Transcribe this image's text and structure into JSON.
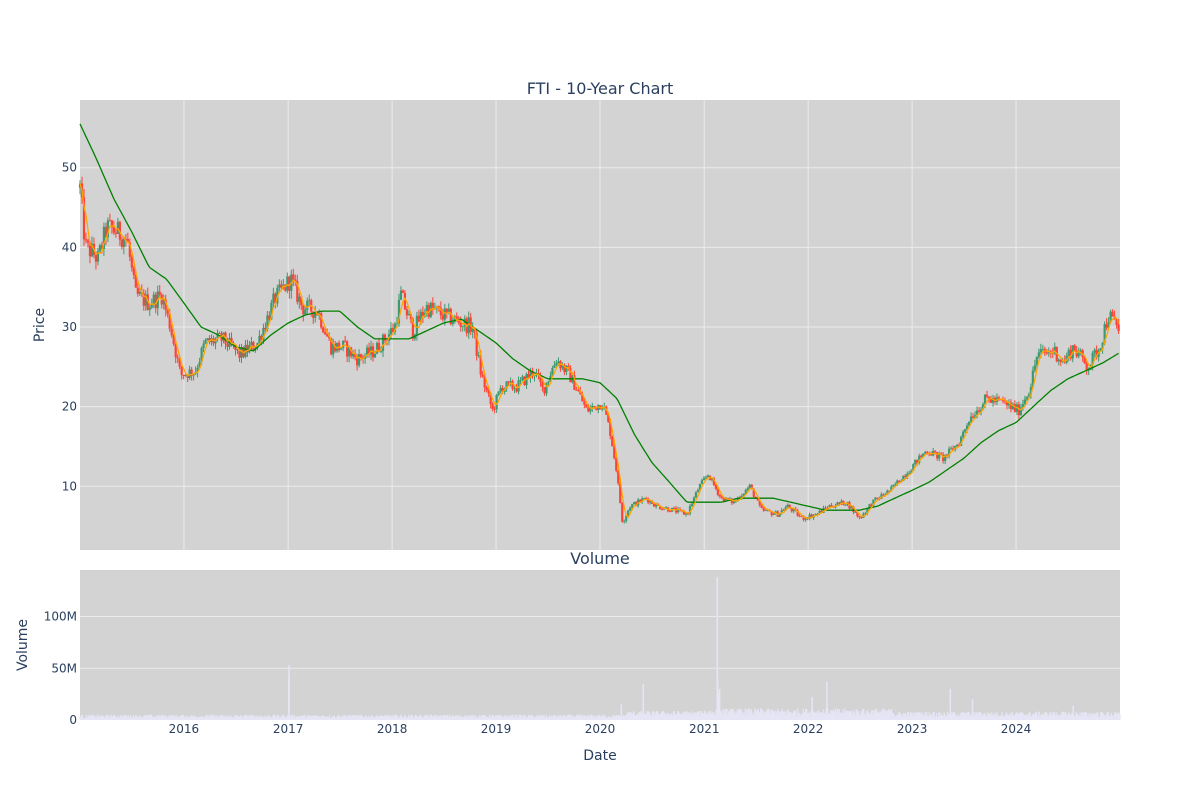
{
  "chart_data": {
    "type": "candlestick",
    "title": "FTI - 10-Year Chart",
    "subplot_title": "Volume",
    "xlabel": "Date",
    "price_ylabel": "Price",
    "volume_ylabel": "Volume",
    "x_range": [
      "2015-01-01",
      "2024-12-31"
    ],
    "x_ticks": [
      "2016",
      "2017",
      "2018",
      "2019",
      "2020",
      "2021",
      "2022",
      "2023",
      "2024"
    ],
    "price_ylim": [
      2,
      58.5
    ],
    "price_ticks": [
      "10",
      "20",
      "30",
      "40",
      "50"
    ],
    "volume_ylim": [
      0,
      145000000
    ],
    "volume_ticks": [
      "0",
      "50M",
      "100M"
    ],
    "grid": true,
    "colors": {
      "panel_bg": "#d3d3d3",
      "grid": "#ebebeb",
      "up": "#3d9970",
      "down": "#ff4136",
      "ma_short": "#ffa500",
      "ma_long": "#008000",
      "volume": "#e5e5f5",
      "text": "#2a3f5f"
    },
    "price_anchors": [
      [
        "2015-01-01",
        47.5
      ],
      [
        "2015-01-20",
        40.0
      ],
      [
        "2015-02-10",
        39.5
      ],
      [
        "2015-03-05",
        38.5
      ],
      [
        "2015-04-05",
        42.5
      ],
      [
        "2015-05-10",
        42.0
      ],
      [
        "2015-06-15",
        41.0
      ],
      [
        "2015-07-15",
        34.0
      ],
      [
        "2015-09-01",
        33.0
      ],
      [
        "2015-10-15",
        34.0
      ],
      [
        "2015-11-15",
        30.0
      ],
      [
        "2015-12-20",
        24.0
      ],
      [
        "2016-02-10",
        24.5
      ],
      [
        "2016-03-15",
        28.0
      ],
      [
        "2016-05-15",
        28.5
      ],
      [
        "2016-07-15",
        26.5
      ],
      [
        "2016-09-15",
        28.0
      ],
      [
        "2016-11-15",
        33.5
      ],
      [
        "2017-01-10",
        36.0
      ],
      [
        "2017-02-20",
        32.5
      ],
      [
        "2017-04-15",
        32.0
      ],
      [
        "2017-06-01",
        27.5
      ],
      [
        "2017-07-15",
        27.5
      ],
      [
        "2017-09-01",
        26.0
      ],
      [
        "2017-11-01",
        27.0
      ],
      [
        "2018-01-10",
        30.0
      ],
      [
        "2018-02-01",
        34.0
      ],
      [
        "2018-03-15",
        29.5
      ],
      [
        "2018-05-01",
        32.5
      ],
      [
        "2018-07-01",
        31.5
      ],
      [
        "2018-09-01",
        30.5
      ],
      [
        "2018-10-10",
        30.0
      ],
      [
        "2018-11-10",
        24.0
      ],
      [
        "2018-12-20",
        19.5
      ],
      [
        "2019-01-20",
        22.5
      ],
      [
        "2019-03-15",
        22.5
      ],
      [
        "2019-05-15",
        24.5
      ],
      [
        "2019-06-15",
        22.0
      ],
      [
        "2019-08-01",
        26.0
      ],
      [
        "2019-09-15",
        24.0
      ],
      [
        "2019-10-15",
        22.0
      ],
      [
        "2019-11-15",
        19.5
      ],
      [
        "2020-01-10",
        20.5
      ],
      [
        "2020-02-05",
        17.0
      ],
      [
        "2020-02-28",
        12.0
      ],
      [
        "2020-03-20",
        5.5
      ],
      [
        "2020-04-15",
        7.5
      ],
      [
        "2020-06-10",
        8.5
      ],
      [
        "2020-07-20",
        7.5
      ],
      [
        "2020-09-15",
        7.0
      ],
      [
        "2020-11-01",
        6.5
      ],
      [
        "2020-12-15",
        10.0
      ],
      [
        "2021-01-15",
        11.5
      ],
      [
        "2021-03-01",
        8.5
      ],
      [
        "2021-04-15",
        8.0
      ],
      [
        "2021-06-10",
        10.0
      ],
      [
        "2021-07-20",
        7.0
      ],
      [
        "2021-09-15",
        6.5
      ],
      [
        "2021-10-20",
        7.5
      ],
      [
        "2021-12-10",
        6.0
      ],
      [
        "2022-02-01",
        6.5
      ],
      [
        "2022-03-15",
        7.5
      ],
      [
        "2022-05-15",
        8.0
      ],
      [
        "2022-07-01",
        6.0
      ],
      [
        "2022-08-15",
        8.0
      ],
      [
        "2022-10-15",
        9.5
      ],
      [
        "2022-12-20",
        12.0
      ],
      [
        "2023-02-20",
        14.5
      ],
      [
        "2023-04-20",
        13.5
      ],
      [
        "2023-06-15",
        15.5
      ],
      [
        "2023-07-20",
        18.5
      ],
      [
        "2023-09-20",
        21.0
      ],
      [
        "2023-11-15",
        20.5
      ],
      [
        "2024-01-10",
        19.5
      ],
      [
        "2024-02-20",
        22.5
      ],
      [
        "2024-03-15",
        26.5
      ],
      [
        "2024-05-15",
        27.0
      ],
      [
        "2024-06-15",
        25.5
      ],
      [
        "2024-07-20",
        27.5
      ],
      [
        "2024-09-10",
        25.0
      ],
      [
        "2024-10-20",
        27.5
      ],
      [
        "2024-11-20",
        31.5
      ],
      [
        "2024-12-31",
        29.5
      ]
    ],
    "ma_long_anchors": [
      [
        "2015-01-01",
        55.5
      ],
      [
        "2015-03-01",
        51.0
      ],
      [
        "2015-05-01",
        46.0
      ],
      [
        "2015-07-01",
        42.0
      ],
      [
        "2015-09-01",
        37.5
      ],
      [
        "2015-11-01",
        36.0
      ],
      [
        "2016-01-01",
        33.0
      ],
      [
        "2016-03-01",
        30.0
      ],
      [
        "2016-05-01",
        29.0
      ],
      [
        "2016-07-01",
        27.5
      ],
      [
        "2016-09-01",
        27.0
      ],
      [
        "2016-11-01",
        29.0
      ],
      [
        "2017-01-01",
        30.5
      ],
      [
        "2017-03-01",
        31.5
      ],
      [
        "2017-05-01",
        32.0
      ],
      [
        "2017-07-01",
        32.0
      ],
      [
        "2017-09-01",
        30.0
      ],
      [
        "2017-11-01",
        28.5
      ],
      [
        "2018-01-01",
        28.5
      ],
      [
        "2018-03-01",
        28.5
      ],
      [
        "2018-05-01",
        29.5
      ],
      [
        "2018-07-01",
        30.5
      ],
      [
        "2018-09-01",
        31.0
      ],
      [
        "2018-11-01",
        29.5
      ],
      [
        "2019-01-01",
        28.0
      ],
      [
        "2019-03-01",
        26.0
      ],
      [
        "2019-05-01",
        24.5
      ],
      [
        "2019-07-01",
        23.5
      ],
      [
        "2019-09-01",
        23.5
      ],
      [
        "2019-11-01",
        23.5
      ],
      [
        "2020-01-01",
        23.0
      ],
      [
        "2020-03-01",
        21.0
      ],
      [
        "2020-05-01",
        16.5
      ],
      [
        "2020-07-01",
        13.0
      ],
      [
        "2020-09-01",
        10.5
      ],
      [
        "2020-11-01",
        8.0
      ],
      [
        "2021-01-01",
        8.0
      ],
      [
        "2021-03-01",
        8.0
      ],
      [
        "2021-05-01",
        8.5
      ],
      [
        "2021-07-01",
        8.5
      ],
      [
        "2021-09-01",
        8.5
      ],
      [
        "2021-11-01",
        8.0
      ],
      [
        "2022-01-01",
        7.5
      ],
      [
        "2022-03-01",
        7.0
      ],
      [
        "2022-05-01",
        7.0
      ],
      [
        "2022-07-01",
        7.0
      ],
      [
        "2022-09-01",
        7.5
      ],
      [
        "2022-11-01",
        8.5
      ],
      [
        "2023-01-01",
        9.5
      ],
      [
        "2023-03-01",
        10.5
      ],
      [
        "2023-05-01",
        12.0
      ],
      [
        "2023-07-01",
        13.5
      ],
      [
        "2023-09-01",
        15.5
      ],
      [
        "2023-11-01",
        17.0
      ],
      [
        "2024-01-01",
        18.0
      ],
      [
        "2024-03-01",
        20.0
      ],
      [
        "2024-05-01",
        22.0
      ],
      [
        "2024-07-01",
        23.5
      ],
      [
        "2024-09-01",
        24.5
      ],
      [
        "2024-11-01",
        25.5
      ],
      [
        "2024-12-31",
        26.8
      ]
    ],
    "volume_spikes": [
      [
        "2017-01-04",
        53000000
      ],
      [
        "2017-01-03",
        41000000
      ],
      [
        "2020-03-16",
        15000000
      ],
      [
        "2020-06-01",
        35000000
      ],
      [
        "2021-02-16",
        138000000
      ],
      [
        "2021-02-17",
        40000000
      ],
      [
        "2021-02-24",
        30000000
      ],
      [
        "2021-02-20",
        26000000
      ],
      [
        "2022-01-15",
        22000000
      ],
      [
        "2022-03-08",
        37000000
      ],
      [
        "2023-05-15",
        30000000
      ],
      [
        "2023-08-01",
        20000000
      ],
      [
        "2024-07-20",
        14000000
      ]
    ]
  }
}
